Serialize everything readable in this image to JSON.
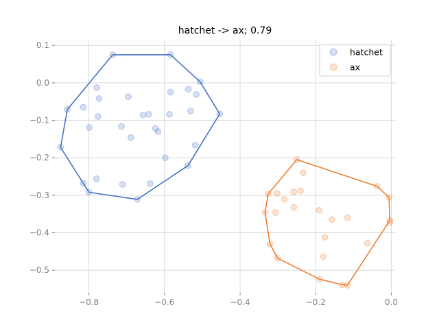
{
  "chart_data": {
    "type": "scatter",
    "title": "hatchet -> ax; 0.79",
    "xlabel": "",
    "ylabel": "",
    "xlim": [
      -0.89,
      0.01
    ],
    "ylim": [
      -0.56,
      0.115
    ],
    "xticks": [
      -0.8,
      -0.6,
      -0.4,
      -0.2,
      0.0
    ],
    "xtick_labels": [
      "−0.8",
      "−0.6",
      "−0.4",
      "−0.2",
      "0.0"
    ],
    "yticks": [
      0.1,
      0.0,
      -0.1,
      -0.2,
      -0.3,
      -0.4,
      -0.5
    ],
    "ytick_labels": [
      "0.1",
      "0.0",
      "−0.1",
      "−0.2",
      "−0.3",
      "−0.4",
      "−0.5"
    ],
    "grid": true,
    "legend_position": "top-right",
    "series": [
      {
        "name": "hatchet",
        "color": "#4472c4",
        "points": [
          [
            -0.737,
            0.075
          ],
          [
            -0.584,
            0.075
          ],
          [
            -0.506,
            0.003
          ],
          [
            -0.454,
            -0.083
          ],
          [
            -0.538,
            -0.221
          ],
          [
            -0.672,
            -0.311
          ],
          [
            -0.8,
            -0.292
          ],
          [
            -0.875,
            -0.172
          ],
          [
            -0.857,
            -0.071
          ],
          [
            -0.779,
            -0.013
          ],
          [
            -0.773,
            -0.042
          ],
          [
            -0.815,
            -0.065
          ],
          [
            -0.696,
            -0.037
          ],
          [
            -0.584,
            -0.025
          ],
          [
            -0.537,
            -0.017
          ],
          [
            -0.516,
            -0.031
          ],
          [
            -0.776,
            -0.09
          ],
          [
            -0.657,
            -0.086
          ],
          [
            -0.642,
            -0.084
          ],
          [
            -0.587,
            -0.084
          ],
          [
            -0.531,
            -0.075
          ],
          [
            -0.799,
            -0.119
          ],
          [
            -0.714,
            -0.116
          ],
          [
            -0.624,
            -0.122
          ],
          [
            -0.617,
            -0.13
          ],
          [
            -0.689,
            -0.146
          ],
          [
            -0.519,
            -0.166
          ],
          [
            -0.598,
            -0.2
          ],
          [
            -0.78,
            -0.256
          ],
          [
            -0.815,
            -0.268
          ],
          [
            -0.711,
            -0.271
          ],
          [
            -0.638,
            -0.269
          ]
        ],
        "hull": [
          [
            -0.737,
            0.075
          ],
          [
            -0.584,
            0.075
          ],
          [
            -0.506,
            0.003
          ],
          [
            -0.454,
            -0.083
          ],
          [
            -0.538,
            -0.221
          ],
          [
            -0.672,
            -0.311
          ],
          [
            -0.8,
            -0.292
          ],
          [
            -0.875,
            -0.172
          ],
          [
            -0.857,
            -0.071
          ]
        ]
      },
      {
        "name": "ax",
        "color": "#ed7d31",
        "points": [
          [
            -0.25,
            -0.205
          ],
          [
            -0.038,
            -0.276
          ],
          [
            -0.006,
            -0.306
          ],
          [
            -0.004,
            -0.367
          ],
          [
            -0.116,
            -0.54
          ],
          [
            -0.301,
            -0.468
          ],
          [
            -0.321,
            -0.43
          ],
          [
            -0.334,
            -0.346
          ],
          [
            -0.326,
            -0.297
          ],
          [
            -0.233,
            -0.24
          ],
          [
            -0.24,
            -0.288
          ],
          [
            -0.258,
            -0.291
          ],
          [
            -0.302,
            -0.295
          ],
          [
            -0.283,
            -0.311
          ],
          [
            -0.306,
            -0.346
          ],
          [
            -0.258,
            -0.332
          ],
          [
            -0.191,
            -0.34
          ],
          [
            -0.157,
            -0.365
          ],
          [
            -0.116,
            -0.36
          ],
          [
            -0.176,
            -0.412
          ],
          [
            -0.063,
            -0.428
          ],
          [
            -0.18,
            -0.464
          ],
          [
            -0.004,
            -0.373
          ],
          [
            -0.13,
            -0.539
          ],
          [
            -0.19,
            -0.524
          ]
        ],
        "hull": [
          [
            -0.25,
            -0.205
          ],
          [
            -0.038,
            -0.276
          ],
          [
            -0.006,
            -0.306
          ],
          [
            -0.004,
            -0.367
          ],
          [
            -0.116,
            -0.54
          ],
          [
            -0.13,
            -0.539
          ],
          [
            -0.19,
            -0.524
          ],
          [
            -0.301,
            -0.468
          ],
          [
            -0.321,
            -0.43
          ],
          [
            -0.334,
            -0.346
          ],
          [
            -0.326,
            -0.297
          ]
        ]
      }
    ]
  }
}
